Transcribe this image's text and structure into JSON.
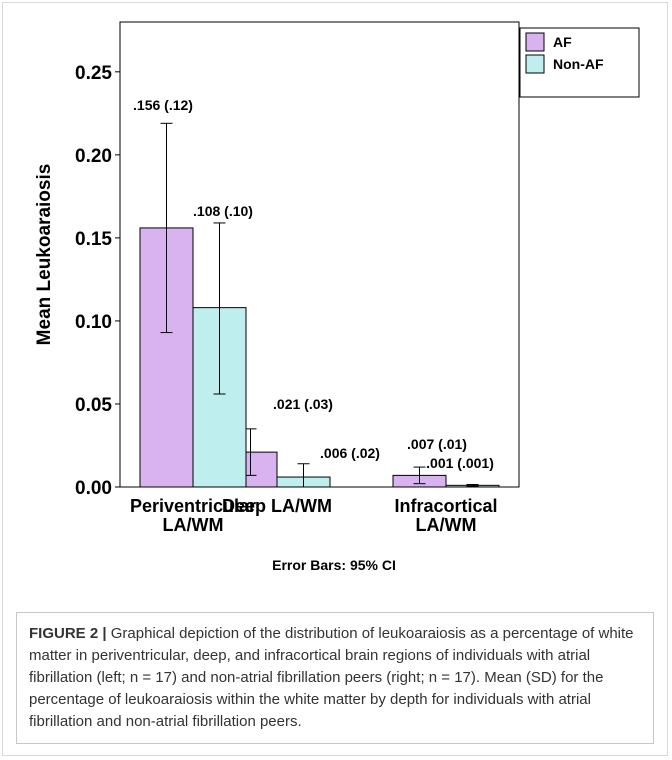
{
  "chart_data": {
    "type": "bar",
    "categories": [
      "Periventricular\nLA/WM",
      "Deep LA/WM",
      "Infracortical\nLA/WM"
    ],
    "series": [
      {
        "name": "AF",
        "color": "#d9b3f0",
        "values": [
          0.156,
          0.021,
          0.007
        ],
        "ci_low": [
          0.093,
          0.007,
          0.002
        ],
        "ci_high": [
          0.219,
          0.035,
          0.012
        ],
        "labels": [
          ".156 (.12)",
          ".021 (.03)",
          ".007 (.01)"
        ]
      },
      {
        "name": "Non-AF",
        "color": "#bfeeee",
        "values": [
          0.108,
          0.006,
          0.001
        ],
        "ci_low": [
          0.056,
          0.0,
          0.0005
        ],
        "ci_high": [
          0.159,
          0.014,
          0.0015
        ],
        "labels": [
          ".108 (.10)",
          ".006 (.02)",
          ".001 (.001)"
        ]
      }
    ],
    "ylabel": "Mean Leukoaraiosis",
    "xlabel": "",
    "ylim": [
      0,
      0.28
    ],
    "yticks": [
      "0.00",
      "0.05",
      "0.10",
      "0.15",
      "0.20",
      "0.25"
    ],
    "legend_position": "top-right",
    "footnote": "Error Bars: 95% CI",
    "grid": false
  },
  "caption": {
    "label": "FIGURE 2 |",
    "text": "Graphical depiction of the distribution of leukoaraiosis as a percentage of white matter in periventricular, deep, and infracortical brain regions of individuals with atrial fibrillation (left; n = 17) and non-atrial fibrillation peers (right; n = 17). Mean (SD) for the percentage of leukoaraiosis within the white matter by depth for individuals with atrial fibrillation and non-atrial fibrillation peers."
  }
}
